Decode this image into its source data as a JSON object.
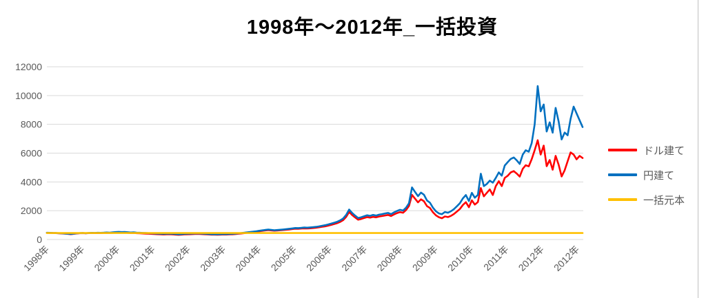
{
  "title": "1998年～2012年_一括投資",
  "legend": [
    {
      "label": "ドル建て",
      "color": "#FF0000"
    },
    {
      "label": "円建て",
      "color": "#0070C0"
    },
    {
      "label": "一括元本",
      "color": "#FFC000"
    }
  ],
  "colors": {
    "gridline": "#D9D9D9",
    "axis_text": "#595959",
    "title_text": "#000000"
  },
  "chart_data": {
    "type": "line",
    "title": "1998年～2012年_一括投資",
    "xlabel": "",
    "ylabel": "",
    "ylim": [
      0,
      12000
    ],
    "y_ticks": [
      0,
      2000,
      4000,
      6000,
      8000,
      10000,
      12000
    ],
    "x_tick_labels": [
      "1998年",
      "1999年",
      "2000年",
      "2001年",
      "2002年",
      "2003年",
      "2004年",
      "2005年",
      "2006年",
      "2007年",
      "2008年",
      "2009年",
      "2010年",
      "2011年",
      "2012年",
      "2012年"
    ],
    "x_unit": "month",
    "x_range": [
      "1998-01",
      "2012-12"
    ],
    "n_points": 180,
    "grid": "horizontal",
    "legend_position": "right",
    "series": [
      {
        "name": "ドル建て",
        "color": "#FF0000",
        "values": [
          465,
          460,
          450,
          445,
          430,
          420,
          405,
          390,
          370,
          395,
          420,
          440,
          445,
          435,
          445,
          450,
          445,
          450,
          445,
          455,
          465,
          455,
          465,
          480,
          490,
          475,
          480,
          465,
          450,
          455,
          440,
          430,
          420,
          410,
          400,
          390,
          380,
          370,
          360,
          350,
          360,
          370,
          355,
          340,
          325,
          340,
          355,
          365,
          370,
          380,
          390,
          385,
          375,
          360,
          350,
          340,
          335,
          330,
          340,
          350,
          345,
          355,
          365,
          380,
          400,
          420,
          445,
          470,
          490,
          515,
          540,
          570,
          600,
          630,
          655,
          630,
          610,
          625,
          640,
          660,
          680,
          700,
          725,
          750,
          745,
          760,
          775,
          765,
          780,
          800,
          820,
          850,
          885,
          920,
          965,
          1020,
          1075,
          1140,
          1225,
          1345,
          1575,
          1915,
          1695,
          1530,
          1375,
          1425,
          1490,
          1555,
          1520,
          1575,
          1540,
          1595,
          1630,
          1670,
          1705,
          1630,
          1740,
          1835,
          1905,
          1860,
          2040,
          2330,
          3100,
          2840,
          2580,
          2790,
          2660,
          2320,
          2190,
          1890,
          1680,
          1550,
          1475,
          1600,
          1560,
          1640,
          1770,
          1940,
          2120,
          2400,
          2590,
          2240,
          2720,
          2430,
          2600,
          3570,
          3000,
          3240,
          3480,
          3090,
          3710,
          4050,
          3710,
          4280,
          4430,
          4660,
          4750,
          4580,
          4370,
          4910,
          5160,
          5080,
          5580,
          6200,
          6900,
          5900,
          6520,
          5090,
          5520,
          4850,
          5810,
          5190,
          4380,
          4810,
          5430,
          6050,
          5900,
          5570,
          5810,
          5660
        ]
      },
      {
        "name": "円建て",
        "color": "#0070C0",
        "values": [
          470,
          465,
          455,
          450,
          440,
          430,
          415,
          400,
          385,
          405,
          430,
          445,
          450,
          440,
          455,
          465,
          460,
          470,
          465,
          475,
          490,
          480,
          495,
          515,
          530,
          515,
          520,
          505,
          490,
          495,
          480,
          470,
          460,
          450,
          440,
          430,
          420,
          410,
          400,
          390,
          400,
          410,
          395,
          380,
          360,
          375,
          390,
          400,
          405,
          415,
          425,
          420,
          410,
          395,
          380,
          370,
          365,
          360,
          370,
          380,
          375,
          385,
          395,
          410,
          430,
          450,
          475,
          500,
          525,
          550,
          575,
          605,
          635,
          665,
          695,
          670,
          645,
          660,
          680,
          700,
          720,
          745,
          770,
          800,
          795,
          810,
          830,
          820,
          840,
          860,
          880,
          915,
          955,
          995,
          1045,
          1105,
          1165,
          1235,
          1330,
          1460,
          1710,
          2080,
          1840,
          1660,
          1490,
          1545,
          1615,
          1685,
          1645,
          1705,
          1665,
          1725,
          1765,
          1805,
          1845,
          1765,
          1885,
          1985,
          2060,
          2015,
          2210,
          2520,
          3620,
          3310,
          3010,
          3260,
          3110,
          2710,
          2560,
          2210,
          1960,
          1810,
          1760,
          1910,
          1860,
          1960,
          2110,
          2310,
          2520,
          2860,
          3090,
          2670,
          3240,
          2900,
          3100,
          4570,
          3710,
          3860,
          4090,
          3950,
          4280,
          4660,
          4430,
          5140,
          5380,
          5600,
          5700,
          5500,
          5250,
          5900,
          6200,
          6100,
          6700,
          8000,
          10660,
          8900,
          9380,
          7500,
          8140,
          7420,
          9140,
          8190,
          6950,
          7430,
          7240,
          8380,
          9230,
          8760,
          8280,
          7810
        ]
      },
      {
        "name": "一括元本",
        "color": "#FFC000",
        "constant": true,
        "values": [
          450,
          450
        ]
      }
    ]
  }
}
